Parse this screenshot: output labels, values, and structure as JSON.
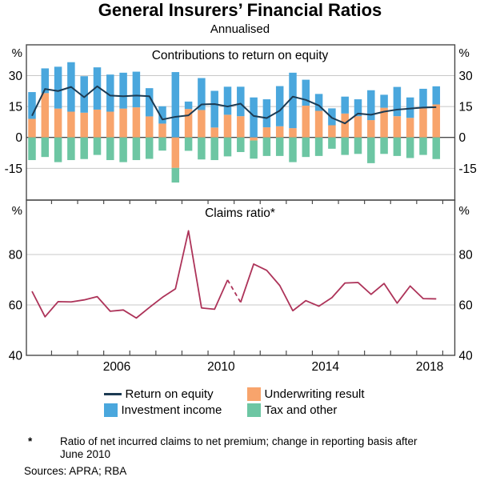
{
  "title": "General Insurers’ Financial Ratios",
  "subtitle": "Annualised",
  "top_panel": {
    "title": "Contributions to return on equity",
    "unit": "%",
    "ticks": [
      30,
      15,
      0,
      -15
    ],
    "grid_light": [
      30,
      15,
      -15
    ],
    "grid_dark": [
      0
    ]
  },
  "bottom_panel": {
    "title": "Claims ratio*",
    "unit": "%",
    "ticks": [
      80,
      60,
      40
    ],
    "grid_light": [
      80,
      60
    ]
  },
  "x_axis": {
    "year_labels": [
      {
        "text": "2006",
        "year": 2006
      },
      {
        "text": "2010",
        "year": 2010
      },
      {
        "text": "2014",
        "year": 2014
      },
      {
        "text": "2018",
        "year": 2018
      }
    ],
    "first_tick_year": 2004,
    "last_tick_year": 2019
  },
  "legend": {
    "items": [
      {
        "label": "Return on equity",
        "color": "#1c3a52",
        "swatch": "line"
      },
      {
        "label": "Underwriting result",
        "color": "#f8a46c",
        "swatch": "square"
      },
      {
        "label": "Investment income",
        "color": "#4aa7dd",
        "swatch": "square"
      },
      {
        "label": "Tax and other",
        "color": "#6dc6a3",
        "swatch": "square"
      }
    ]
  },
  "footnote": {
    "marker": "*",
    "text": "Ratio of net incurred claims to net premium; change in reporting basis after June 2010"
  },
  "sources": "Sources: APRA; RBA",
  "colors": {
    "underwriting": "#f8a46c",
    "investment": "#4aa7dd",
    "tax": "#6dc6a3",
    "roe_line": "#1c3a52",
    "claims_line": "#ad3359",
    "grid_light": "#c8c8c8",
    "axis": "#4a4a4a",
    "text": "#000000"
  },
  "chart_data": [
    {
      "type": "bar",
      "subtype": "stacked-with-line",
      "title": "Contributions to return on equity",
      "ylabel": "%",
      "ylim": [
        -30,
        45
      ],
      "grid": true,
      "categories": [
        "2003 H1",
        "2003 H2",
        "2004 H1",
        "2004 H2",
        "2005 H1",
        "2005 H2",
        "2006 H1",
        "2006 H2",
        "2007 H1",
        "2007 H2",
        "2008 H1",
        "2008 H2",
        "2009 H1",
        "2009 H2",
        "2010 H1",
        "2010 H2",
        "2011 H1",
        "2011 H2",
        "2012 H1",
        "2012 H2",
        "2013 H1",
        "2013 H2",
        "2014 H1",
        "2014 H2",
        "2015 H1",
        "2015 H2",
        "2016 H1",
        "2016 H2",
        "2017 H1",
        "2017 H2",
        "2018 H1",
        "2018 H2"
      ],
      "series": [
        {
          "name": "Underwriting result",
          "render": "bar",
          "values": [
            9.0,
            21.5,
            14.0,
            12.5,
            12.0,
            13.5,
            12.5,
            14.0,
            14.6,
            10.2,
            6.7,
            -14.8,
            13.8,
            13.3,
            4.8,
            11.0,
            10.3,
            -1.5,
            4.9,
            5.4,
            4.5,
            15.4,
            12.9,
            5.9,
            11.6,
            10.3,
            8.4,
            14.4,
            10.3,
            9.5,
            14.1,
            16.0
          ]
        },
        {
          "name": "Investment income",
          "render": "bar",
          "values": [
            13.0,
            12.0,
            20.3,
            24.0,
            17.7,
            20.5,
            18.0,
            17.4,
            17.3,
            13.7,
            8.4,
            31.7,
            3.6,
            15.5,
            17.8,
            13.6,
            14.3,
            19.4,
            13.6,
            19.5,
            26.9,
            12.6,
            8.2,
            8.2,
            8.2,
            8.2,
            14.5,
            6.3,
            14.2,
            9.9,
            9.5,
            8.8
          ]
        },
        {
          "name": "Tax and other",
          "render": "bar",
          "values": [
            -11.0,
            -9.5,
            -12.0,
            -11.0,
            -10.5,
            -8.5,
            -11.0,
            -12.0,
            -11.0,
            -10.4,
            -6.4,
            -7.1,
            -6.5,
            -10.7,
            -11.0,
            -9.2,
            -7.1,
            -8.8,
            -9.0,
            -9.0,
            -12.0,
            -9.5,
            -9.0,
            -5.5,
            -8.5,
            -8.0,
            -12.5,
            -8.0,
            -9.0,
            -10.0,
            -8.5,
            -10.5
          ]
        },
        {
          "name": "Return on equity",
          "render": "line",
          "values": [
            10.5,
            23.5,
            22.5,
            24.5,
            19.5,
            24.8,
            20.3,
            20.0,
            20.3,
            20.0,
            8.7,
            10.0,
            10.7,
            16.0,
            16.2,
            15.0,
            16.4,
            10.4,
            9.4,
            13.0,
            19.8,
            18.2,
            15.5,
            9.5,
            6.8,
            11.6,
            11.0,
            12.5,
            13.5,
            14.0,
            14.5,
            14.7
          ]
        }
      ],
      "legend_position": "bottom"
    },
    {
      "type": "line",
      "title": "Claims ratio*",
      "ylabel": "%",
      "ylim": [
        40,
        100
      ],
      "grid": true,
      "categories": [
        "2003 H1",
        "2003 H2",
        "2004 H1",
        "2004 H2",
        "2005 H1",
        "2005 H2",
        "2006 H1",
        "2006 H2",
        "2007 H1",
        "2007 H2",
        "2008 H1",
        "2008 H2",
        "2009 H1",
        "2009 H2",
        "2010 H1",
        "2010 H2",
        "2011 H1",
        "2011 H2",
        "2012 H1",
        "2012 H2",
        "2013 H1",
        "2013 H2",
        "2014 H1",
        "2014 H2",
        "2015 H1",
        "2015 H2",
        "2016 H1",
        "2016 H2",
        "2017 H1",
        "2017 H2",
        "2018 H1",
        "2018 H2"
      ],
      "series": [
        {
          "name": "Claims ratio",
          "render": "line",
          "values": [
            65.4,
            55.3,
            61.3,
            61.2,
            62.0,
            63.3,
            57.5,
            58.0,
            54.8,
            59.0,
            63.0,
            66.4,
            89.4,
            58.8,
            58.3,
            69.9,
            61.0,
            76.2,
            73.7,
            67.7,
            57.7,
            61.7,
            59.5,
            62.9,
            68.7,
            68.9,
            64.2,
            68.5,
            60.7,
            67.5,
            62.5,
            62.4
          ],
          "dash_segment": [
            15,
            16
          ],
          "dash_note": "dashed segment marks change in reporting basis"
        }
      ],
      "legend_position": "none"
    }
  ]
}
